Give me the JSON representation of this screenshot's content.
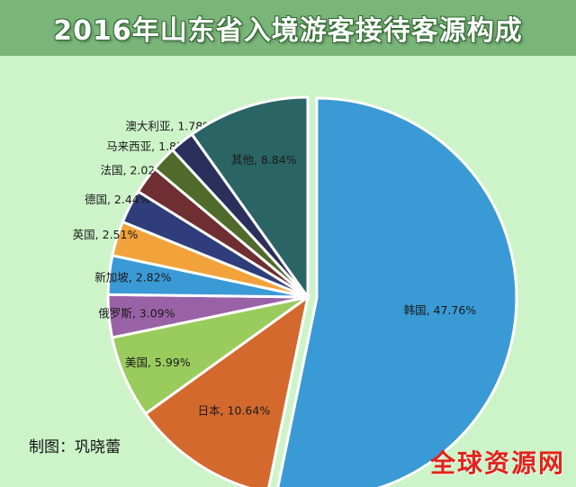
{
  "header": {
    "title": "2016年山东省入境游客接待客源构成"
  },
  "credit": "制图：巩晓蕾",
  "watermark": "全球资源网",
  "chart_data": {
    "type": "pie",
    "title": "2016年山东省入境游客接待客源构成",
    "unit": "%",
    "slices": [
      {
        "label": "韩国",
        "value": 47.76,
        "display": "韩国, 47.76%",
        "color": "#3a9ad6"
      },
      {
        "label": "日本",
        "value": 10.64,
        "display": "日本, 10.64%",
        "color": "#d4692e"
      },
      {
        "label": "美国",
        "value": 5.99,
        "display": "美国, 5.99%",
        "color": "#9acb5d"
      },
      {
        "label": "俄罗斯",
        "value": 3.09,
        "display": "俄罗斯, 3.09%",
        "color": "#9a62a6"
      },
      {
        "label": "新加坡",
        "value": 2.82,
        "display": "新加坡, 2.82%",
        "color": "#3a9ad6"
      },
      {
        "label": "英国",
        "value": 2.51,
        "display": "英国, 2.51%",
        "color": "#f2a23a"
      },
      {
        "label": "德国",
        "value": 2.44,
        "display": "德国, 2.44%",
        "color": "#2f3d7a"
      },
      {
        "label": "法国",
        "value": 2.02,
        "display": "法国, 2.02%",
        "color": "#6e2e32"
      },
      {
        "label": "马来西亚",
        "value": 1.85,
        "display": "马来西亚, 1.85%",
        "color": "#4f6a2a"
      },
      {
        "label": "澳大利亚",
        "value": 1.78,
        "display": "澳大利亚, 1.78%",
        "color": "#2a2f5c"
      },
      {
        "label": "其他",
        "value": 8.84,
        "display": "其他, 8.84%",
        "color": "#2a6464"
      }
    ]
  }
}
